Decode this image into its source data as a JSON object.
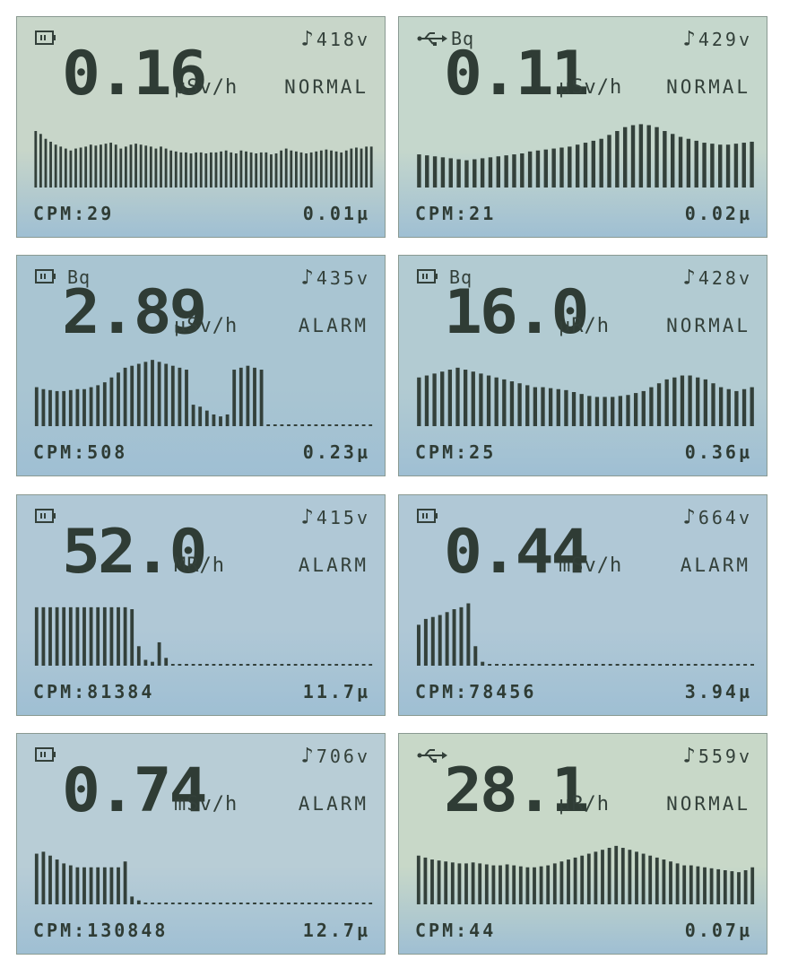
{
  "panels": [
    {
      "status_icon": "battery-icon",
      "bq": "",
      "voltage": "418v",
      "value": "0.16",
      "unit": "µSv/h",
      "state": "NORMAL",
      "cpm": "CPM:29",
      "dose": "0.01µ",
      "bg": "#c8d6c9",
      "graph": {
        "type": "bar",
        "values": [
          58,
          55,
          50,
          47,
          44,
          42,
          40,
          38,
          40,
          41,
          42,
          44,
          43,
          44,
          45,
          46,
          44,
          40,
          42,
          44,
          45,
          44,
          43,
          42,
          40,
          42,
          40,
          38,
          37,
          36,
          36,
          35,
          36,
          36,
          35,
          36,
          36,
          37,
          38,
          36,
          35,
          38,
          37,
          36,
          35,
          36,
          36,
          34,
          35,
          38,
          40,
          38,
          37,
          36,
          35,
          36,
          37,
          38,
          39,
          38,
          37,
          36,
          38,
          40,
          41,
          40,
          42,
          42
        ]
      }
    },
    {
      "status_icon": "usb-icon",
      "bq": "Bq",
      "voltage": "429v",
      "value": "0.11",
      "unit": "µSv/h",
      "state": "NORMAL",
      "cpm": "CPM:21",
      "dose": "0.02µ",
      "bg": "#c5d7cc",
      "graph": {
        "type": "bar",
        "values": [
          34,
          33,
          32,
          31,
          30,
          29,
          28,
          29,
          30,
          31,
          32,
          33,
          34,
          35,
          37,
          38,
          39,
          40,
          41,
          42,
          44,
          46,
          48,
          50,
          54,
          58,
          62,
          64,
          65,
          64,
          62,
          58,
          55,
          52,
          50,
          48,
          46,
          45,
          44,
          44,
          45,
          46,
          47
        ]
      }
    },
    {
      "status_icon": "battery-icon",
      "bq": "Bq",
      "voltage": "435v",
      "value": "2.89",
      "unit": "µSv/h",
      "state": "ALARM",
      "cpm": "CPM:508",
      "dose": "0.23µ",
      "bg": "#a9c5d2",
      "graph": {
        "type": "bar",
        "values": [
          40,
          38,
          37,
          36,
          36,
          37,
          38,
          38,
          40,
          42,
          45,
          50,
          55,
          60,
          62,
          64,
          66,
          68,
          66,
          64,
          62,
          60,
          58,
          22,
          20,
          16,
          12,
          10,
          12,
          58,
          60,
          62,
          60,
          58,
          0,
          0,
          0,
          0,
          0,
          0,
          0,
          0,
          0,
          0,
          0,
          0,
          0,
          0,
          0,
          0
        ]
      }
    },
    {
      "status_icon": "battery-icon",
      "bq": "Bq",
      "voltage": "428v",
      "value": "16.0",
      "unit": "µR/h",
      "state": "NORMAL",
      "cpm": "CPM:25",
      "dose": "0.36µ",
      "bg": "#b2cbd2",
      "graph": {
        "type": "bar",
        "values": [
          50,
          52,
          54,
          56,
          58,
          60,
          58,
          56,
          54,
          52,
          50,
          48,
          46,
          44,
          42,
          40,
          40,
          39,
          38,
          37,
          35,
          33,
          31,
          30,
          30,
          30,
          31,
          32,
          34,
          36,
          40,
          44,
          48,
          50,
          52,
          52,
          50,
          48,
          44,
          40,
          38,
          36,
          38,
          40
        ]
      }
    },
    {
      "status_icon": "battery-icon",
      "bq": "",
      "voltage": "415v",
      "value": "52.0",
      "unit": "MR/h",
      "state": "ALARM",
      "cpm": "CPM:81384",
      "dose": "11.7µ",
      "bg": "#b0c8d6",
      "graph": {
        "type": "bar",
        "values": [
          60,
          60,
          60,
          60,
          60,
          60,
          60,
          60,
          60,
          60,
          60,
          60,
          60,
          60,
          58,
          20,
          6,
          4,
          24,
          8,
          0,
          0,
          0,
          0,
          0,
          0,
          0,
          0,
          0,
          0,
          0,
          0,
          0,
          0,
          0,
          0,
          0,
          0,
          0,
          0,
          0,
          0,
          0,
          0,
          0,
          0,
          0,
          0,
          0,
          0
        ]
      }
    },
    {
      "status_icon": "battery-icon",
      "bq": "",
      "voltage": "664v",
      "value": "0.44",
      "unit": "mSv/h",
      "state": "ALARM",
      "cpm": "CPM:78456",
      "dose": "3.94µ",
      "bg": "#b0c8d6",
      "graph": {
        "type": "bar",
        "values": [
          42,
          48,
          50,
          52,
          55,
          58,
          60,
          64,
          20,
          4,
          0,
          0,
          0,
          0,
          0,
          0,
          0,
          0,
          0,
          0,
          0,
          0,
          0,
          0,
          0,
          0,
          0,
          0,
          0,
          0,
          0,
          0,
          0,
          0,
          0,
          0,
          0,
          0,
          0,
          0,
          0,
          0,
          0,
          0,
          0,
          0,
          0,
          0
        ]
      }
    },
    {
      "status_icon": "battery-icon",
      "bq": "",
      "voltage": "706v",
      "value": "0.74",
      "unit": "mSv/h",
      "state": "ALARM",
      "cpm": "CPM:130848",
      "dose": "12.7µ",
      "bg": "#b8cdd6",
      "graph": {
        "type": "bar",
        "values": [
          52,
          54,
          50,
          46,
          42,
          40,
          38,
          38,
          38,
          38,
          38,
          38,
          38,
          44,
          8,
          4,
          0,
          0,
          0,
          0,
          0,
          0,
          0,
          0,
          0,
          0,
          0,
          0,
          0,
          0,
          0,
          0,
          0,
          0,
          0,
          0,
          0,
          0,
          0,
          0,
          0,
          0,
          0,
          0,
          0,
          0,
          0,
          0,
          0,
          0
        ]
      }
    },
    {
      "status_icon": "usb-icon",
      "bq": "",
      "voltage": "559v",
      "value": "28.1",
      "unit": "µR/h",
      "state": "NORMAL",
      "cpm": "CPM:44",
      "dose": "0.07µ",
      "bg": "#c8d8c8",
      "graph": {
        "type": "bar",
        "values": [
          50,
          48,
          46,
          45,
          44,
          43,
          42,
          42,
          43,
          42,
          41,
          40,
          40,
          41,
          40,
          39,
          38,
          38,
          39,
          40,
          42,
          44,
          46,
          48,
          50,
          52,
          54,
          56,
          58,
          60,
          58,
          56,
          54,
          52,
          50,
          48,
          46,
          44,
          42,
          40,
          40,
          39,
          38,
          37,
          36,
          35,
          34,
          33,
          35,
          38
        ]
      }
    }
  ],
  "colors": {
    "lcd_ink": "#2f3c35"
  }
}
